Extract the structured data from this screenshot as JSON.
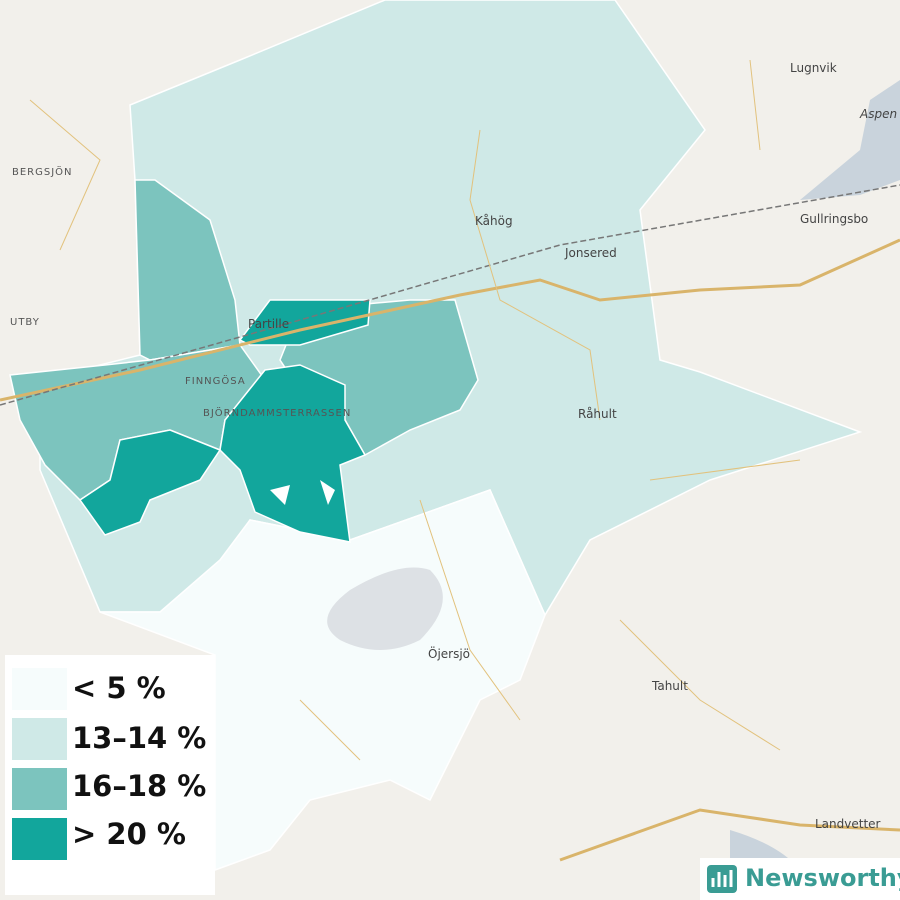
{
  "places": [
    "Lugnvik",
    "Aspen",
    "BERGSJÖN",
    "Gullringsbo",
    "Kåhög",
    "Jonsered",
    "UTBY",
    "Partille",
    "FINNGÖSA",
    "BJÖRNDAMMSTERRASSEN",
    "Råhult",
    "Öjersjö",
    "Tahult",
    "Landvetter"
  ],
  "legend": {
    "items": [
      "< 5 %",
      "13–14 %",
      "16–18 %",
      "> 20 %"
    ]
  },
  "brand": "Newsworthy"
}
